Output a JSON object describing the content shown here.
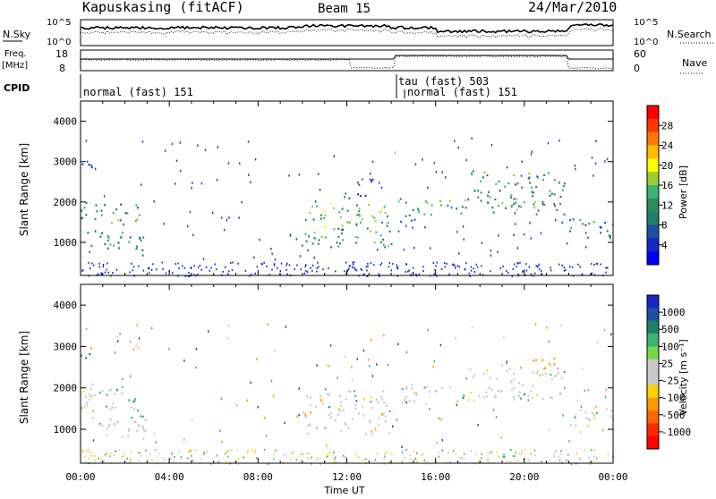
{
  "header": {
    "station": "Kapuskasing (fitACF)",
    "beam": "Beam 15",
    "date": "24/Mar/2010"
  },
  "noise_panel": {
    "left_label": "N.Sky",
    "right_label": "N.Search",
    "left_ticks": [
      "10^5",
      "10^0"
    ],
    "right_ticks": [
      "10^5",
      "10^0"
    ]
  },
  "freq_panel": {
    "left_label_1": "Freq.",
    "left_label_2": "[MHz]",
    "right_label": "Nave",
    "left_ticks": [
      "18",
      "8"
    ],
    "right_ticks": [
      "60",
      "0"
    ]
  },
  "cpid_panel": {
    "label": "CPID",
    "programs": [
      "normal (fast) 151",
      "tau (fast) 503",
      "normal (fast) 151"
    ]
  },
  "chart_data": [
    {
      "type": "heatmap",
      "title": "",
      "quantity": "Power",
      "ylabel": "Slant Range [km]",
      "xlabel": "Time UT",
      "xticks": [
        "00:00",
        "04:00",
        "08:00",
        "12:00",
        "16:00",
        "20:00",
        "00:00"
      ],
      "yticks": [
        "1000",
        "2000",
        "3000",
        "4000"
      ],
      "ylim": [
        180,
        4500
      ],
      "colorbar": {
        "label": "Power [dB]",
        "ticks": [
          "28",
          "24",
          "20",
          "16",
          "12",
          "8",
          "4"
        ],
        "colors": [
          "#ff0000",
          "#ff3800",
          "#ff7a00",
          "#ffbb00",
          "#ffff00",
          "#9acd32",
          "#3cb371",
          "#2e8b57",
          "#1e7f6a",
          "#1e50a0",
          "#1428c8",
          "#0000ff"
        ]
      },
      "regions": [
        {
          "t0": 0.3,
          "t1": 3.0,
          "r0": 800,
          "r1": 1300,
          "level": 8
        },
        {
          "t0": 0.0,
          "t1": 2.8,
          "r0": 1500,
          "r1": 2000,
          "level": 10
        },
        {
          "t0": 0.0,
          "t1": 0.5,
          "r0": 2500,
          "r1": 3000,
          "level": 6
        },
        {
          "t0": 10.0,
          "t1": 14.0,
          "r0": 900,
          "r1": 2000,
          "level": 12
        },
        {
          "t0": 11.8,
          "t1": 13.2,
          "r0": 2100,
          "r1": 2600,
          "level": 6
        },
        {
          "t0": 14.3,
          "t1": 15.2,
          "r0": 1500,
          "r1": 2000,
          "level": 10
        },
        {
          "t0": 14.3,
          "t1": 21.8,
          "r0": 1700,
          "r1": 2100,
          "level": 12
        },
        {
          "t0": 17.5,
          "t1": 21.8,
          "r0": 2100,
          "r1": 2800,
          "level": 10
        },
        {
          "t0": 22.0,
          "t1": 24.0,
          "r0": 1100,
          "r1": 1600,
          "level": 8
        }
      ]
    },
    {
      "type": "heatmap",
      "title": "",
      "quantity": "Velocity",
      "ylabel": "Slant Range [km]",
      "xlabel": "Time UT",
      "xticks": [
        "00:00",
        "04:00",
        "08:00",
        "12:00",
        "16:00",
        "20:00",
        "00:00"
      ],
      "yticks": [
        "1000",
        "2000",
        "3000",
        "4000"
      ],
      "ylim": [
        180,
        4500
      ],
      "colorbar": {
        "label": "Velocity [m s⁻¹]",
        "ticks": [
          "1000",
          "500",
          "100",
          "25",
          "-25",
          "-100",
          "-500",
          "-1000"
        ],
        "colors": [
          "#1428c8",
          "#1e50a0",
          "#1e7f6a",
          "#3cb371",
          "#76d74a",
          "#c8c8c8",
          "#c8c8c8",
          "#ffd000",
          "#ff9900",
          "#ff6600",
          "#ff2a00",
          "#ff0000"
        ]
      },
      "regions": [
        {
          "t0": 0.3,
          "t1": 3.0,
          "r0": 800,
          "r1": 1300,
          "level": 0
        },
        {
          "t0": 0.0,
          "t1": 2.8,
          "r0": 1500,
          "r1": 2000,
          "level": 0
        },
        {
          "t0": 2.0,
          "t1": 2.9,
          "r0": 1300,
          "r1": 1800,
          "level": 50
        },
        {
          "t0": 0.0,
          "t1": 0.5,
          "r0": 2500,
          "r1": 3000,
          "level": 100
        },
        {
          "t0": 10.0,
          "t1": 14.0,
          "r0": 900,
          "r1": 2000,
          "level": 0
        },
        {
          "t0": 14.3,
          "t1": 21.8,
          "r0": 1700,
          "r1": 2100,
          "level": 0
        },
        {
          "t0": 17.5,
          "t1": 21.8,
          "r0": 2100,
          "r1": 2500,
          "level": 0
        },
        {
          "t0": 19.8,
          "t1": 21.5,
          "r0": 2500,
          "r1": 2800,
          "level": -300
        },
        {
          "t0": 22.0,
          "t1": 24.0,
          "r0": 1100,
          "r1": 1600,
          "level": 0
        }
      ]
    }
  ]
}
